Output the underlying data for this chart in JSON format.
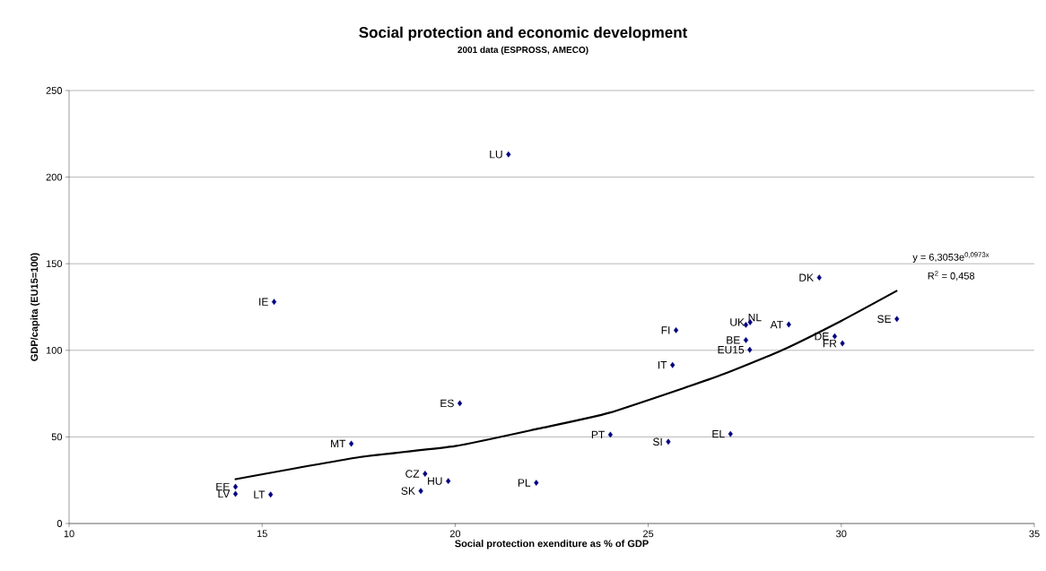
{
  "chart_data": {
    "type": "scatter",
    "title": "Social protection and economic development",
    "subtitle": "2001 data (ESPROSS, AMECO)",
    "xlabel": "Social protection exenditure as % of GDP",
    "ylabel": "GDP/capita (EU15=100)",
    "xlim": [
      10,
      35
    ],
    "xticks": [
      10,
      15,
      20,
      25,
      30,
      35
    ],
    "ylim": [
      0,
      250
    ],
    "yticks": [
      0,
      50,
      100,
      150,
      200,
      250
    ],
    "grid": "y",
    "series": [
      {
        "color": "#000080",
        "marker": "diamond",
        "x": [
          21.38,
          15.31,
          20.12,
          17.31,
          19.22,
          19.82,
          19.11,
          22.1,
          14.31,
          14.31,
          15.22,
          25.72,
          25.63,
          27.64,
          27.53,
          28.64,
          27.53,
          27.63,
          29.83,
          30.03,
          31.44,
          24.02,
          25.52,
          27.13,
          29.43
        ],
        "values": [
          213.1,
          128,
          69.4,
          46.1,
          28.7,
          24.5,
          18.8,
          23.5,
          21.2,
          17.1,
          16.7,
          111.6,
          91.5,
          116.2,
          114.7,
          114.9,
          105.9,
          100.3,
          108.1,
          104.0,
          118.1,
          51.3,
          47.2,
          51.7,
          142
        ]
      },
      {
        "type": "line",
        "color": "#000000",
        "marker": "none",
        "line_style": "solid",
        "x": [
          14.29,
          17.52,
          20.0,
          22.16,
          24.0,
          26.8,
          28.46,
          30.0,
          31.45
        ],
        "values": [
          25.5,
          38.3,
          44.7,
          54.8,
          64,
          85,
          100,
          117,
          134.5
        ]
      }
    ],
    "annotations": [
      {
        "text": "LU",
        "x": 21.38,
        "y": 213.1
      },
      {
        "text": "IE",
        "x": 15.31,
        "y": 128
      },
      {
        "text": "ES",
        "x": 20.12,
        "y": 69.4
      },
      {
        "text": "MT",
        "x": 17.31,
        "y": 46.1
      },
      {
        "text": "CZ",
        "x": 19.22,
        "y": 28.7
      },
      {
        "text": "HU",
        "x": 19.82,
        "y": 24.5
      },
      {
        "text": "SK",
        "x": 19.11,
        "y": 18.8
      },
      {
        "text": "PL",
        "x": 22.1,
        "y": 23.5
      },
      {
        "text": "EE",
        "x": 14.31,
        "y": 21.2
      },
      {
        "text": "LV",
        "x": 14.31,
        "y": 17.1
      },
      {
        "text": "LT",
        "x": 15.22,
        "y": 16.7
      },
      {
        "text": "FI",
        "x": 25.72,
        "y": 111.6
      },
      {
        "text": "IT",
        "x": 25.63,
        "y": 91.5
      },
      {
        "text": "UK",
        "x": 27.64,
        "y": 116.2
      },
      {
        "text": "NL",
        "x": 27.53,
        "y": 114.7
      },
      {
        "text": "AT",
        "x": 28.64,
        "y": 114.9
      },
      {
        "text": "BE",
        "x": 27.53,
        "y": 105.9
      },
      {
        "text": "EU15",
        "x": 27.63,
        "y": 100.3
      },
      {
        "text": "DE",
        "x": 29.83,
        "y": 108.1
      },
      {
        "text": "FR",
        "x": 30.03,
        "y": 104.0
      },
      {
        "text": "SE",
        "x": 31.44,
        "y": 118.1
      },
      {
        "text": "PT",
        "x": 24.02,
        "y": 51.3
      },
      {
        "text": "SI",
        "x": 25.52,
        "y": 47.2
      },
      {
        "text": "EL",
        "x": 27.13,
        "y": 51.7
      },
      {
        "text": "DK",
        "x": 29.43,
        "y": 142
      },
      "y = 6,3053e$^{0,0973x}$",
      "R$^{2}$ = 0,458"
    ]
  }
}
